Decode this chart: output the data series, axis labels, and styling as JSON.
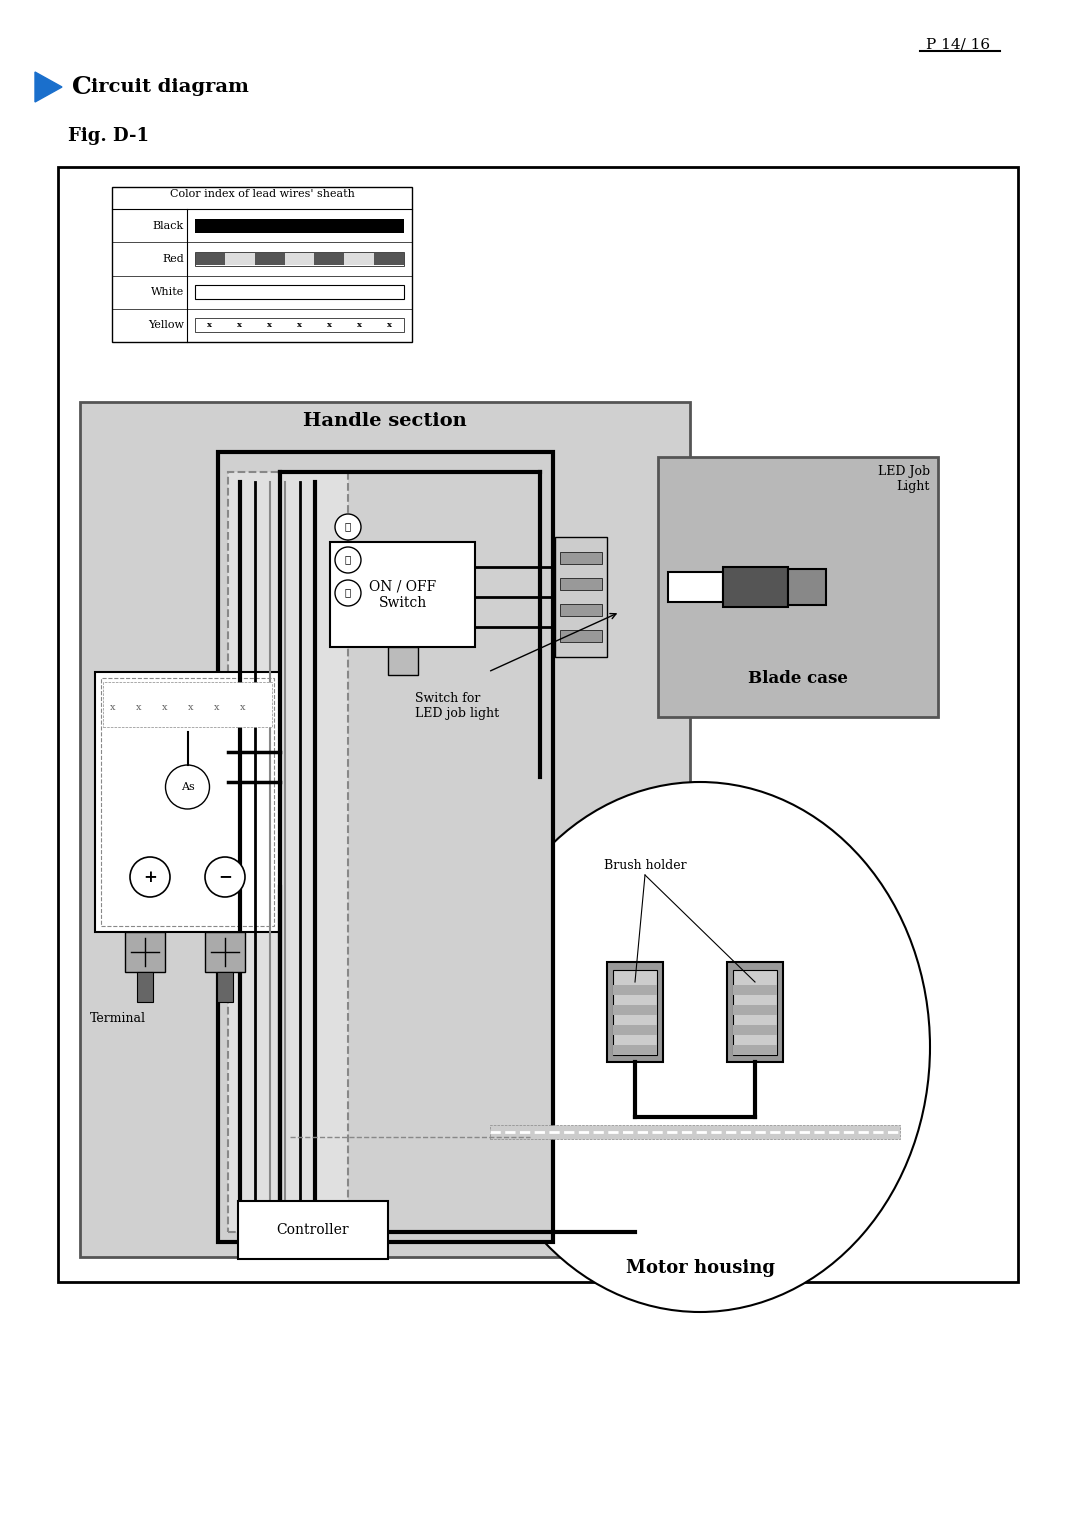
{
  "page_header": "P 14/ 16",
  "title_C": "C",
  "title_rest": "ircuit diagram",
  "fig_label": "Fig. D-1",
  "bg_color": "#ffffff",
  "color_index_title": "Color index of lead wires' sheath",
  "wire_colors": [
    "Black",
    "Red",
    "White",
    "Yellow"
  ],
  "handle_section_label": "Handle section",
  "blade_case_label": "Blade case",
  "motor_housing_label": "Motor housing",
  "on_off_label": "ON / OFF\nSwitch",
  "switch_led_label": "Switch for\nLED job light",
  "led_job_label": "LED Job\nLight",
  "brush_label": "Brush holder",
  "terminal_label": "Terminal",
  "controller_label": "Controller",
  "numbered": [
    "②",
    "①",
    "③"
  ]
}
